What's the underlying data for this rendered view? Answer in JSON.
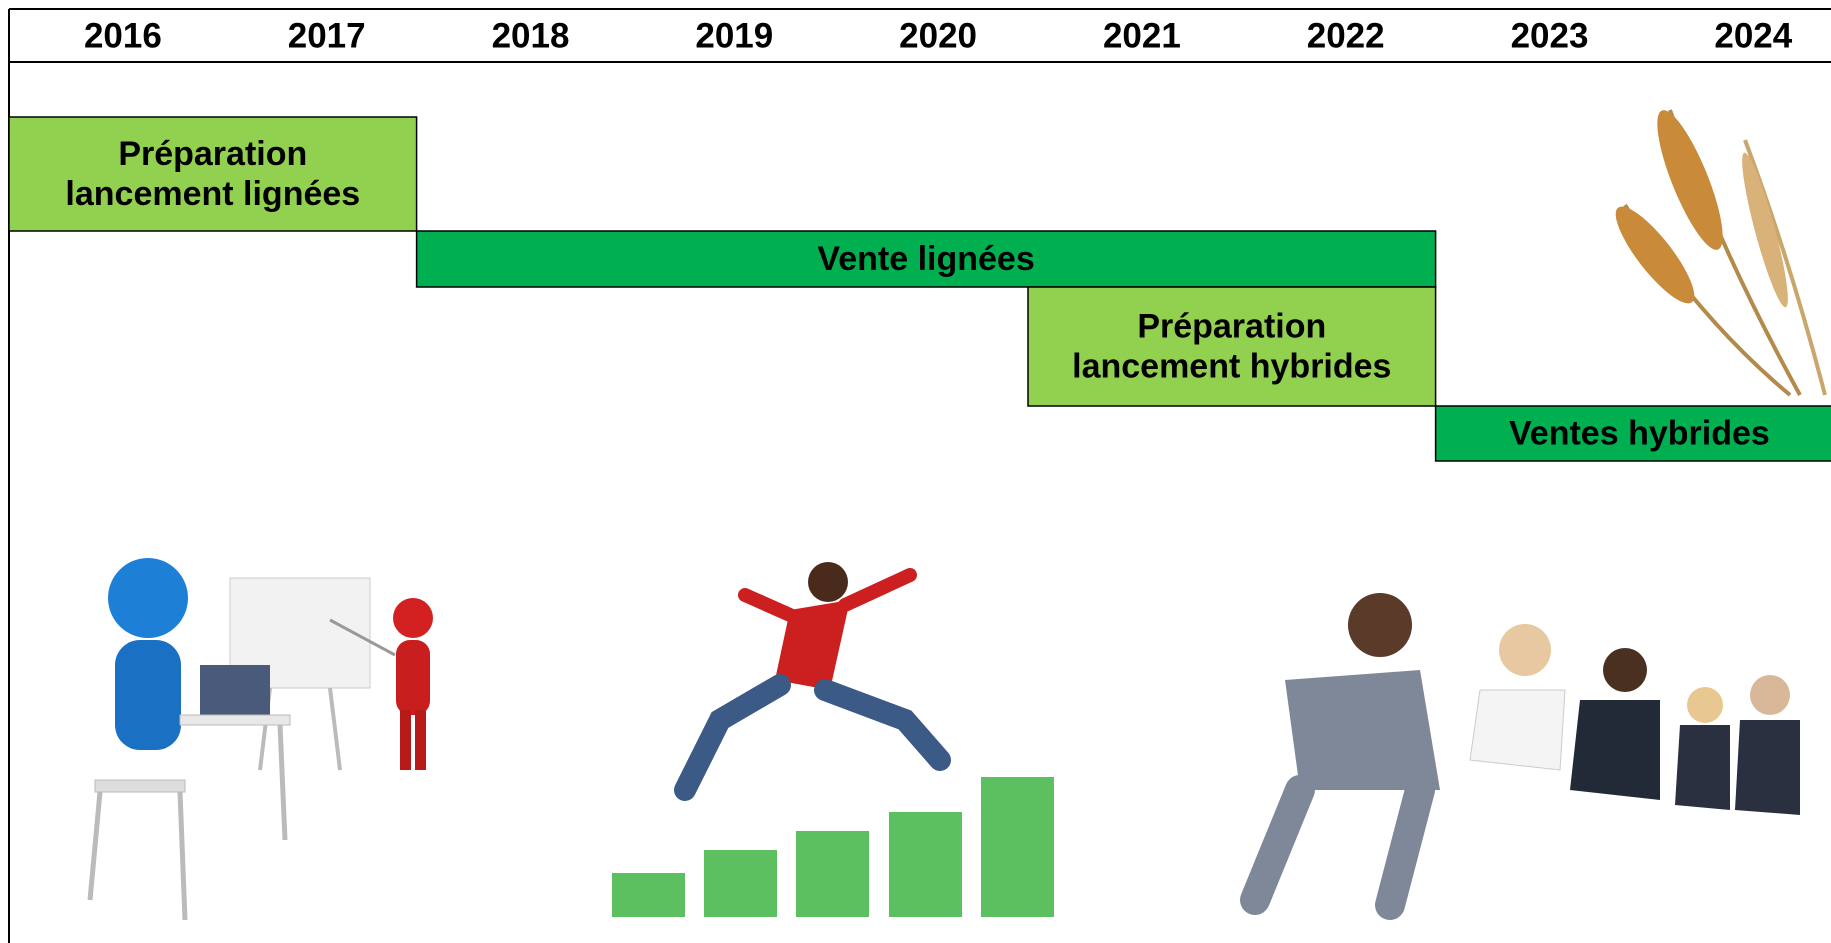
{
  "years": [
    "2016",
    "2017",
    "2018",
    "2019",
    "2020",
    "2021",
    "2022",
    "2023",
    "2024"
  ],
  "tasks": [
    {
      "lines": [
        "Préparation",
        "lancement lignées"
      ],
      "color": "#92d050"
    },
    {
      "lines": [
        "Vente lignées"
      ],
      "color": "#00b050"
    },
    {
      "lines": [
        "Préparation",
        "lancement hybrides"
      ],
      "color": "#92d050"
    },
    {
      "lines": [
        "Ventes hybrides"
      ],
      "color": "#00b050"
    }
  ]
}
